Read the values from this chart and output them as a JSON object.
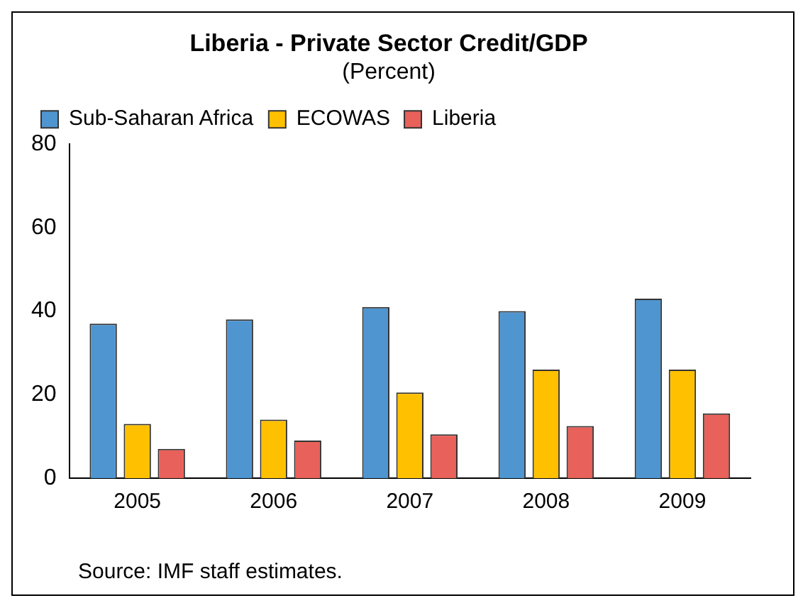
{
  "chart_data": {
    "type": "bar",
    "title": "Liberia - Private Sector Credit/GDP",
    "subtitle": "(Percent)",
    "categories": [
      "2005",
      "2006",
      "2007",
      "2008",
      "2009"
    ],
    "series": [
      {
        "name": "Sub-Saharan Africa",
        "color": "#4f95d0",
        "values": [
          37,
          38,
          41,
          40,
          43
        ]
      },
      {
        "name": "ECOWAS",
        "color": "#ffc000",
        "values": [
          13,
          14,
          20.5,
          26,
          26
        ]
      },
      {
        "name": "Liberia",
        "color": "#e8615a",
        "values": [
          7,
          9,
          10.5,
          12.5,
          15.5
        ]
      }
    ],
    "ylim": [
      0,
      80
    ],
    "yticks": [
      0,
      20,
      40,
      60,
      80
    ],
    "grid": false,
    "legend": "top left",
    "annotations": [
      "Source: IMF staff estimates."
    ]
  }
}
